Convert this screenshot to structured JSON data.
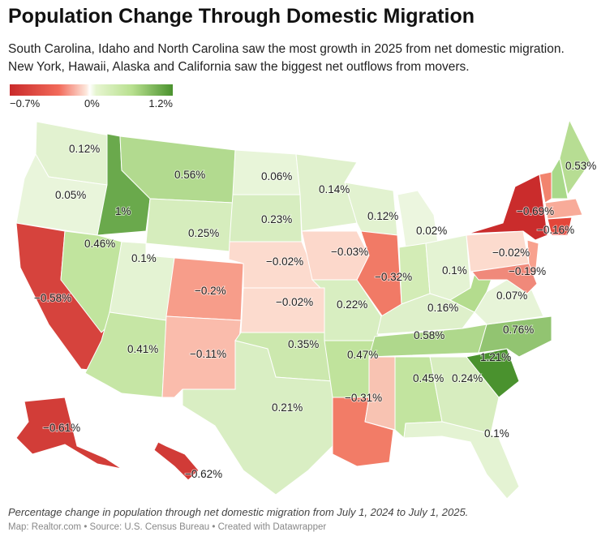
{
  "title": "Population Change Through Domestic Migration",
  "subtitle": "South Carolina, Idaho and North Carolina saw the most growth in 2025 from net domestic migration. New York, Hawaii, Alaska and California saw the biggest net outflows from movers.",
  "legend": {
    "min_label": "−0.7%",
    "mid_label": "0%",
    "max_label": "1.2%",
    "min": -0.7,
    "max": 1.2,
    "colors": {
      "low": "#c92a2a",
      "mid": "#ffffff",
      "high": "#4a922e"
    }
  },
  "states": {
    "WA": {
      "value": 0.12,
      "label": "0.12%"
    },
    "OR": {
      "value": 0.05,
      "label": "0.05%"
    },
    "CA": {
      "value": -0.58,
      "label": "−0.58%"
    },
    "ID": {
      "value": 1,
      "label": "1%"
    },
    "NV": {
      "value": 0.46,
      "label": "0.46%"
    },
    "MT": {
      "value": 0.56,
      "label": "0.56%"
    },
    "WY": {
      "value": 0.25,
      "label": "0.25%"
    },
    "UT": {
      "value": 0.1,
      "label": "0.1%"
    },
    "AZ": {
      "value": 0.41,
      "label": "0.41%"
    },
    "CO": {
      "value": -0.2,
      "label": "−0.2%"
    },
    "NM": {
      "value": -0.11,
      "label": "−0.11%"
    },
    "ND": {
      "value": 0.06,
      "label": "0.06%"
    },
    "SD": {
      "value": 0.23,
      "label": "0.23%"
    },
    "NE": {
      "value": -0.02,
      "label": "−0.02%"
    },
    "KS": {
      "value": -0.02,
      "label": "−0.02%"
    },
    "OK": {
      "value": 0.35,
      "label": "0.35%"
    },
    "TX": {
      "value": 0.21,
      "label": "0.21%"
    },
    "MN": {
      "value": 0.14,
      "label": "0.14%"
    },
    "IA": {
      "value": -0.03,
      "label": "−0.03%"
    },
    "MO": {
      "value": 0.22,
      "label": "0.22%"
    },
    "AR": {
      "value": 0.47,
      "label": "0.47%"
    },
    "LA": {
      "value": -0.31,
      "label": "−0.31%"
    },
    "WI": {
      "value": 0.12,
      "label": "0.12%"
    },
    "IL": {
      "value": -0.32,
      "label": "−0.32%"
    },
    "MI": {
      "value": 0.02,
      "label": "0.02%"
    },
    "OH": {
      "value": 0.1,
      "label": "0.1%"
    },
    "KY": {
      "value": 0.16,
      "label": "0.16%"
    },
    "TN": {
      "value": 0.58,
      "label": "0.58%"
    },
    "AL": {
      "value": 0.45,
      "label": "0.45%"
    },
    "GA": {
      "value": 0.24,
      "label": "0.24%"
    },
    "FL": {
      "value": 0.1,
      "label": "0.1%"
    },
    "SC": {
      "value": 1.21,
      "label": "1.21%"
    },
    "NC": {
      "value": 0.76,
      "label": "0.76%"
    },
    "VA": {
      "value": 0.07,
      "label": "0.07%"
    },
    "PA": {
      "value": -0.02,
      "label": "−0.02%"
    },
    "NJ": {
      "value": -0.19,
      "label": "−0.19%"
    },
    "NY": {
      "value": -0.69,
      "label": "−0.69%"
    },
    "MA": {
      "value": -0.16,
      "label": "−0.16%"
    },
    "ME": {
      "value": 0.53,
      "label": "0.53%"
    },
    "AK": {
      "value": -0.61,
      "label": "−0.61%"
    },
    "HI": {
      "value": -0.62,
      "label": "−0.62%"
    }
  },
  "unlabeled_colors": {
    "IN": "#d3ecb6",
    "WV": "#b4dc8e",
    "MS": "#f8c3b2",
    "VT": "#f2846e",
    "NH": "#a9d98a",
    "CT": "#e3463a",
    "MD": "#f0897a"
  },
  "caption": "Percentage change in population through net domestic migration from July 1, 2024 to July 1, 2025.",
  "source": "Map: Realtor.com • Source: U.S. Census Bureau • Created with Datawrapper"
}
